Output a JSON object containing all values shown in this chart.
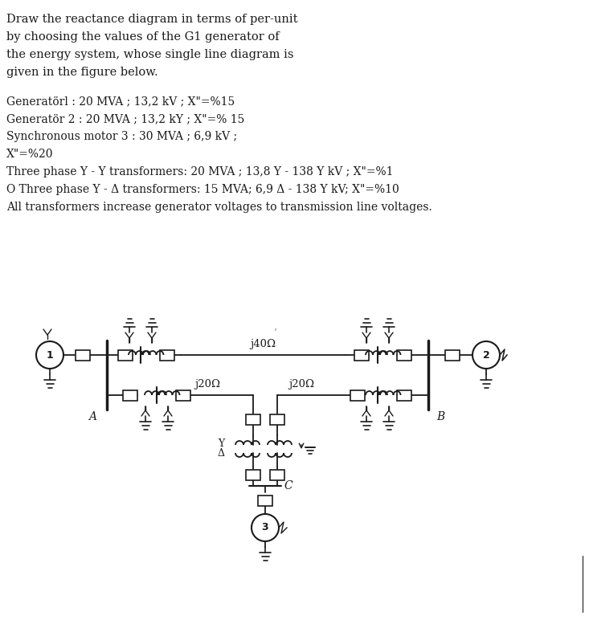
{
  "title_lines": [
    "Draw the reactance diagram in terms of per-unit",
    "by choosing the values of the G1 generator of",
    "the energy system, whose single line diagram is",
    "given in the figure below."
  ],
  "info_lines": [
    "Generatörl : 20 MVA ; 13,2 kV ; X\"=%15",
    "Generatör 2 : 20 MVA ; 13,2 kY ; X\"=% 15",
    "Synchronous motor 3 : 30 MVA ; 6,9 kV ;",
    "X\"=%20",
    "Three phase Y - Y transformers: 20 MVA ; 13,8 Y - 138 Y kV ; X\"=%1",
    "O Three phase Y - Δ transformers: 15 MVA; 6,9 Δ - 138 Y kV; X\"=%10",
    "All transformers increase generator voltages to transmission line voltages."
  ],
  "bg_color": "#ffffff",
  "line_color": "#1a1a1a",
  "font_size_title": 10.5,
  "font_size_info": 10.0,
  "fig_width": 7.33,
  "fig_height": 7.72,
  "dpi": 100
}
